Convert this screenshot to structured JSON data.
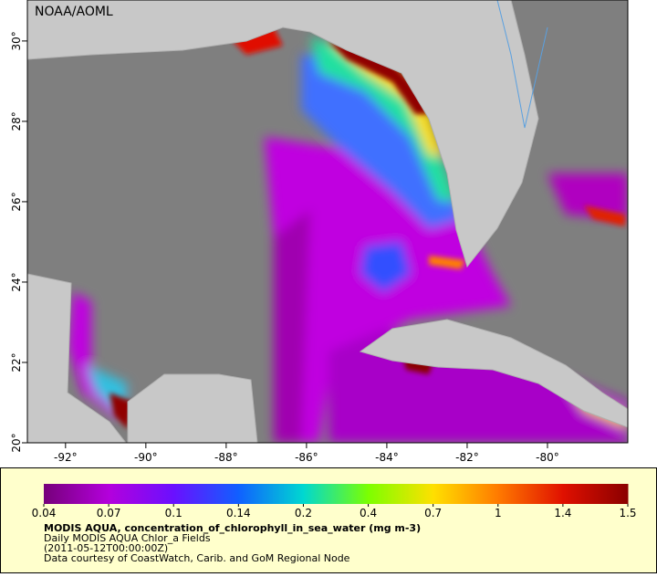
{
  "map": {
    "credit": "NOAA/AOML",
    "lonlim": [
      -92.95,
      -78.0
    ],
    "latlim": [
      20,
      31.02
    ],
    "lonticks": [
      {
        "value": -92,
        "label": "-92°"
      },
      {
        "value": -90,
        "label": "-90°"
      },
      {
        "value": -88,
        "label": "-88°"
      },
      {
        "value": -86,
        "label": "-86°"
      },
      {
        "value": -84,
        "label": "-84°"
      },
      {
        "value": -82,
        "label": "-82°"
      },
      {
        "value": -80,
        "label": "-80°"
      }
    ],
    "latticks": [
      {
        "value": 20,
        "label": "20°"
      },
      {
        "value": 22,
        "label": "22°"
      },
      {
        "value": 24,
        "label": "24°"
      },
      {
        "value": 26,
        "label": "26°"
      },
      {
        "value": 28,
        "label": "28°"
      },
      {
        "value": 30,
        "label": "30°"
      }
    ]
  },
  "colorbar": {
    "ticks": [
      0.04,
      0.07,
      0.1,
      0.14,
      0.2,
      0.4,
      0.7,
      1,
      1.4,
      1.5
    ],
    "colors": [
      "#76007a",
      "#b400dc",
      "#6a10ff",
      "#1060ff",
      "#00d8d0",
      "#7cff00",
      "#ffe000",
      "#ff7a00",
      "#e01000",
      "#8a0000"
    ],
    "title": "MODIS AQUA, concentration_of_chlorophyll_in_sea_water (mg m-3)",
    "lines": [
      "Daily MODIS AQUA Chlor_a Fields",
      "(2011-05-12T00:00:00Z)",
      "Data courtesy of CoastWatch, Carib. and GoM Regional Node"
    ]
  }
}
